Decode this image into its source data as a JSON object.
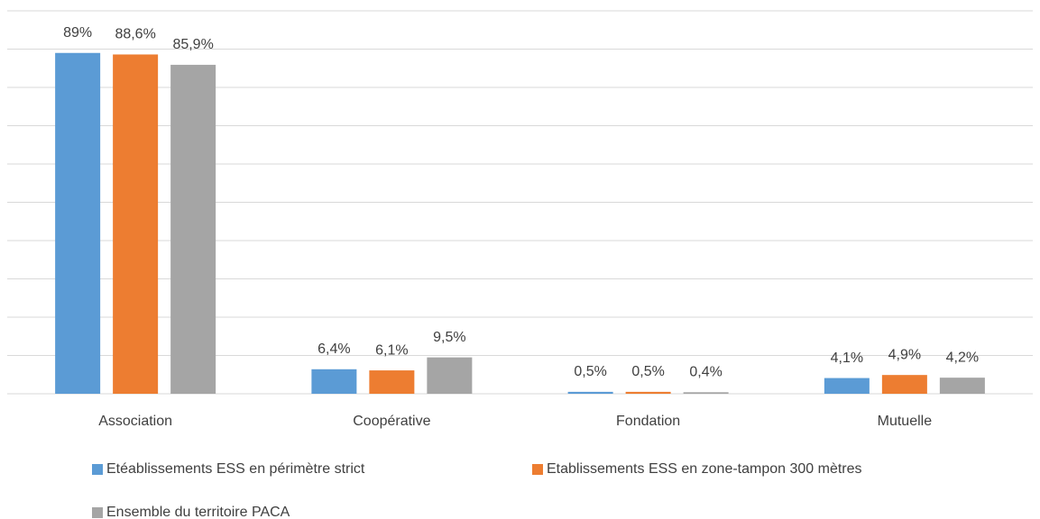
{
  "chart_data": {
    "type": "bar",
    "categories": [
      "Association",
      "Coopérative",
      "Fondation",
      "Mutuelle"
    ],
    "series": [
      {
        "name": "Etéablissements ESS en périmètre strict",
        "color": "#5b9bd5",
        "values": [
          89,
          6.4,
          0.5,
          4.1
        ],
        "value_labels": [
          "89%",
          "6,4%",
          "0,5%",
          "4,1%"
        ]
      },
      {
        "name": "Etablissements ESS en zone-tampon 300 mètres",
        "color": "#ed7d31",
        "values": [
          88.6,
          6.1,
          0.5,
          4.9
        ],
        "value_labels": [
          "88,6%",
          "6,1%",
          "0,5%",
          "4,9%"
        ]
      },
      {
        "name": "Ensemble du territoire PACA",
        "color": "#a5a5a5",
        "values": [
          85.9,
          9.5,
          0.4,
          4.2
        ],
        "value_labels": [
          "85,9%",
          "9,5%",
          "0,4%",
          "4,2%"
        ]
      }
    ],
    "ylim": [
      0,
      100
    ],
    "yticks": [
      0,
      10,
      20,
      30,
      40,
      50,
      60,
      70,
      80,
      90,
      100
    ],
    "grid": true
  }
}
